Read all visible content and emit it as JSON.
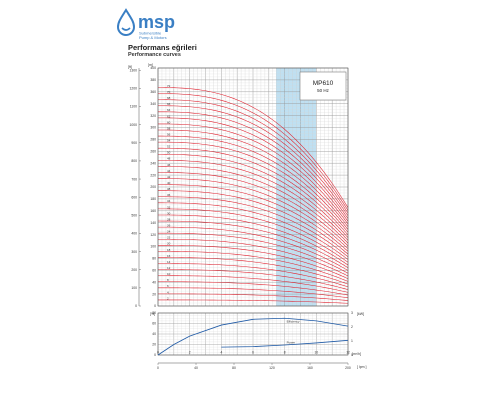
{
  "brand": {
    "name": "msp",
    "tagline_line1": "Submersible",
    "tagline_line2": "Pump & Motors",
    "logo_color": "#3a7fc4",
    "icon": "drop-icon"
  },
  "title_tr": "Performans eğrileri",
  "title_en": "Performance curves",
  "chart_data": [
    {
      "type": "line",
      "title": "Performance curves",
      "model": "MP610",
      "frequency": "50 Hz",
      "x_label": "",
      "xlim": [
        0,
        12
      ],
      "x_ticks": [
        "0",
        "2",
        "4",
        "6",
        "8",
        "10",
        "12"
      ],
      "y_unit_left_outer": "[ft]",
      "y_unit_left_inner": "[m]",
      "ylim": [
        0,
        400
      ],
      "y_ticks_m": [
        "0",
        "20",
        "40",
        "60",
        "80",
        "100",
        "120",
        "140",
        "160",
        "180",
        "200",
        "220",
        "240",
        "260",
        "280",
        "300",
        "320",
        "340",
        "360",
        "380",
        "400"
      ],
      "y_ticks_ft": [
        "0",
        "100",
        "200",
        "300",
        "400",
        "500",
        "600",
        "700",
        "800",
        "900",
        "1000",
        "1100",
        "1200",
        "1300"
      ],
      "stage_labels": [
        "2",
        "4",
        "6",
        "8",
        "10",
        "12",
        "14",
        "16",
        "18",
        "20",
        "22",
        "24",
        "26",
        "28",
        "30",
        "32",
        "34",
        "36",
        "38",
        "40",
        "42",
        "44",
        "46",
        "48",
        "50",
        "52",
        "54",
        "56",
        "58",
        "60",
        "62",
        "64",
        "66",
        "68",
        "70",
        "72"
      ],
      "head_per_stage_at_zero_flow_m": 5.1,
      "series_color": "#e0202e",
      "best_efficiency_band_x": [
        6.0,
        10.0
      ],
      "band_color": "#bfe0f2"
    },
    {
      "type": "line",
      "y_unit_left": "[%]",
      "y_unit_right": "[kW]",
      "x_unit_right": "[m³/h]",
      "ylim": [
        0,
        80
      ],
      "y_ticks": [
        "0",
        "20",
        "40",
        "60",
        "80"
      ],
      "y2_ticks": [
        "0",
        "1",
        "2",
        "3"
      ],
      "x_ticks": [
        "0",
        "2",
        "4",
        "6",
        "8",
        "10",
        "12"
      ],
      "series": [
        {
          "name": "Efficiency",
          "x": [
            0,
            1,
            2,
            4,
            6,
            8,
            10,
            12
          ],
          "y": [
            0,
            20,
            36,
            57,
            68,
            70,
            65,
            55
          ]
        },
        {
          "name": "Power",
          "x": [
            4,
            6,
            8,
            10,
            12
          ],
          "y": [
            15,
            16,
            19,
            23,
            28
          ]
        }
      ],
      "series_color": "#1f5aa6"
    }
  ],
  "bottom_axis": {
    "unit": "[ lpm ]",
    "ticks": [
      "0",
      "40",
      "80",
      "120",
      "160",
      "200"
    ]
  }
}
